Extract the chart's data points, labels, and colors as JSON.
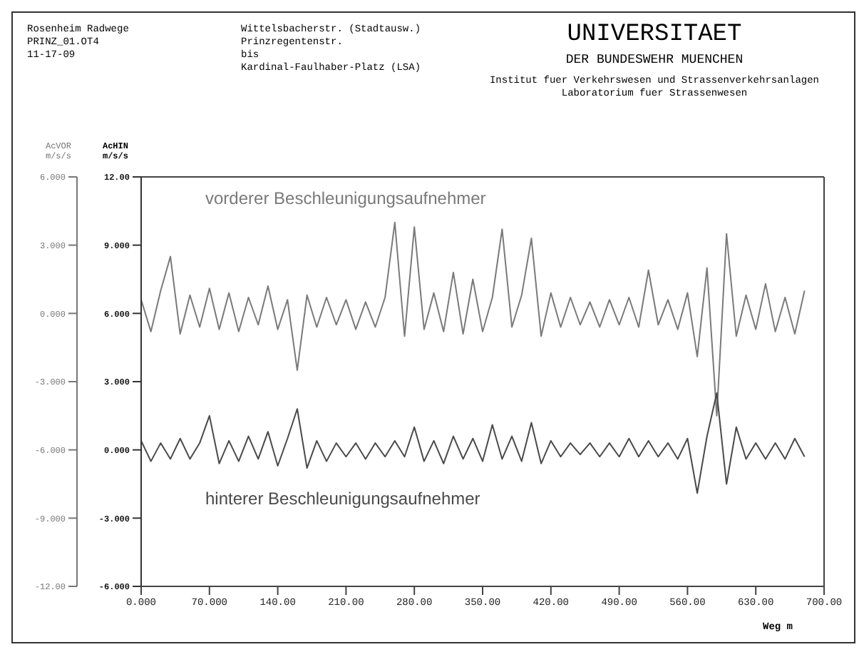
{
  "chart_data": {
    "type": "line",
    "title": "UNIVERSITAET",
    "subtitle": "DER BUNDESWEHR MUENCHEN",
    "annotations": [
      "Rosenheim Radwege",
      "PRINZ_01.OT4",
      "11-17-09",
      "Wittelsbacherstr. (Stadtausw.)",
      "Prinzregentenstr.",
      "bis",
      "Kardinal-Faulhaber-Platz (LSA)",
      "Institut fuer Verkehrswesen und Strassenverkehrsanlagen",
      "Laboratorium fuer Strassenwesen"
    ],
    "xlabel": "Weg m",
    "ylabel": "AcVOR m/s/s",
    "y2label": "AcHIN m/s/s",
    "x": [
      0,
      10,
      20,
      30,
      40,
      50,
      60,
      70,
      80,
      90,
      100,
      110,
      120,
      130,
      140,
      150,
      160,
      170,
      180,
      190,
      200,
      210,
      220,
      230,
      240,
      250,
      260,
      270,
      280,
      290,
      300,
      310,
      320,
      330,
      340,
      350,
      360,
      370,
      380,
      390,
      400,
      410,
      420,
      430,
      440,
      450,
      460,
      470,
      480,
      490,
      500,
      510,
      520,
      530,
      540,
      550,
      560,
      570,
      580,
      590,
      600,
      610,
      620,
      630,
      640,
      650,
      660,
      670,
      680
    ],
    "series": [
      {
        "name": "vorderer Beschleunigungsaufnehmer",
        "color": "#7a7a7a",
        "values": [
          0.6,
          -0.8,
          1.0,
          2.5,
          -0.9,
          0.8,
          -0.6,
          1.1,
          -0.7,
          0.9,
          -0.8,
          0.7,
          -0.5,
          1.2,
          -0.7,
          0.6,
          -2.5,
          0.8,
          -0.6,
          0.7,
          -0.5,
          0.6,
          -0.7,
          0.5,
          -0.6,
          0.7,
          4.0,
          -1.0,
          3.8,
          -0.7,
          0.9,
          -0.8,
          1.8,
          -0.9,
          1.5,
          -0.8,
          0.7,
          3.7,
          -0.6,
          0.8,
          3.3,
          -1.0,
          0.9,
          -0.6,
          0.7,
          -0.5,
          0.5,
          -0.6,
          0.6,
          -0.5,
          0.7,
          -0.6,
          1.9,
          -0.5,
          0.6,
          -0.7,
          0.9,
          -1.9,
          2.0,
          -4.5,
          3.5,
          -1.0,
          0.8,
          -0.7,
          1.3,
          -0.8,
          0.7,
          -0.9,
          1.0
        ]
      },
      {
        "name": "hinterer Beschleunigungsaufnehmer",
        "color": "#4a4a4a",
        "axis": "y2",
        "values": [
          0.4,
          -0.5,
          0.3,
          -0.4,
          0.5,
          -0.4,
          0.3,
          1.5,
          -0.6,
          0.4,
          -0.5,
          0.6,
          -0.4,
          0.8,
          -0.7,
          0.5,
          1.8,
          -0.8,
          0.4,
          -0.5,
          0.3,
          -0.3,
          0.3,
          -0.4,
          0.3,
          -0.3,
          0.4,
          -0.3,
          1.0,
          -0.5,
          0.4,
          -0.6,
          0.6,
          -0.4,
          0.5,
          -0.5,
          1.1,
          -0.4,
          0.6,
          -0.5,
          1.2,
          -0.6,
          0.4,
          -0.3,
          0.3,
          -0.2,
          0.3,
          -0.3,
          0.3,
          -0.3,
          0.5,
          -0.3,
          0.4,
          -0.3,
          0.3,
          -0.4,
          0.5,
          -1.9,
          0.6,
          2.5,
          -1.5,
          1.0,
          -0.4,
          0.3,
          -0.4,
          0.3,
          -0.4,
          0.5,
          -0.3
        ]
      }
    ],
    "xlim": [
      0,
      700
    ],
    "xticks": [
      {
        "value": 0,
        "label": "0.000"
      },
      {
        "value": 70,
        "label": "70.000"
      },
      {
        "value": 140,
        "label": "140.00"
      },
      {
        "value": 210,
        "label": "210.00"
      },
      {
        "value": 280,
        "label": "280.00"
      },
      {
        "value": 350,
        "label": "350.00"
      },
      {
        "value": 420,
        "label": "420.00"
      },
      {
        "value": 490,
        "label": "490.00"
      },
      {
        "value": 560,
        "label": "560.00"
      },
      {
        "value": 630,
        "label": "630.00"
      },
      {
        "value": 700,
        "label": "700.00"
      }
    ],
    "ylim": [
      -12,
      6
    ],
    "yticks": [
      {
        "value": 6,
        "label": "6.000"
      },
      {
        "value": 3,
        "label": "3.000"
      },
      {
        "value": 0,
        "label": "0.000"
      },
      {
        "value": -3,
        "label": "-3.000"
      },
      {
        "value": -6,
        "label": "-6.000"
      },
      {
        "value": -9,
        "label": "-9.000"
      },
      {
        "value": -12,
        "label": "-12.00"
      }
    ],
    "y2lim": [
      -6,
      12
    ],
    "y2ticks": [
      {
        "value": 12,
        "label": "12.00"
      },
      {
        "value": 9,
        "label": "9.000"
      },
      {
        "value": 6,
        "label": "6.000"
      },
      {
        "value": 3,
        "label": "3.000"
      },
      {
        "value": 0,
        "label": "0.000"
      },
      {
        "value": -3,
        "label": "-3.000"
      },
      {
        "value": -6,
        "label": "-6.000"
      }
    ],
    "grid": false,
    "legend": false
  }
}
